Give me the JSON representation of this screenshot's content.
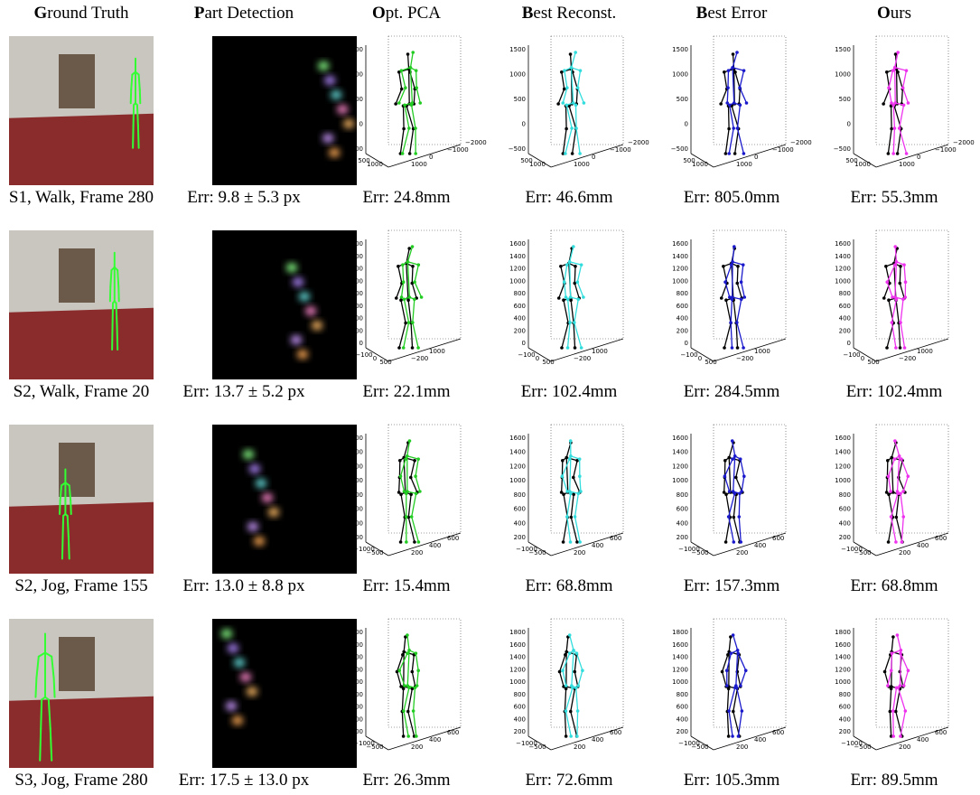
{
  "columns": [
    "Ground Truth",
    "Part Detection",
    "Opt. PCA",
    "Best Reconst.",
    "Best Error",
    "Ours"
  ],
  "rows": [
    {
      "caption": "S1, Walk, Frame 280",
      "errors": [
        "Err: 9.8 ± 5.3 px",
        "Err: 24.8mm",
        "Err: 46.6mm",
        "Err: 805.0mm",
        "Err: 55.3mm"
      ],
      "z_ticks": [
        "1500",
        "1000",
        "500",
        "0",
        "−500"
      ],
      "y_ticks": [
        "500",
        "1000"
      ],
      "x_ticks": [
        "1000",
        "0",
        "−1000",
        "−2000"
      ]
    },
    {
      "caption": "S2, Walk, Frame 20",
      "errors": [
        "Err: 13.7 ± 5.2 px",
        "Err: 22.1mm",
        "Err: 102.4mm",
        "Err: 284.5mm",
        "Err: 102.4mm"
      ],
      "z_ticks": [
        "1600",
        "1400",
        "1200",
        "1000",
        "800",
        "600",
        "400",
        "200",
        "0"
      ],
      "y_ticks": [
        "−100",
        "0",
        "500"
      ],
      "x_ticks": [
        "−200",
        "1000"
      ]
    },
    {
      "caption": "S2, Jog, Frame 155",
      "errors": [
        "Err: 13.0 ± 8.8 px",
        "Err: 15.4mm",
        "Err: 68.8mm",
        "Err: 157.3mm",
        "Err: 68.8mm"
      ],
      "z_ticks": [
        "1600",
        "1400",
        "1200",
        "1000",
        "800",
        "600",
        "400",
        "200"
      ],
      "y_ticks": [
        "−1000",
        "−500"
      ],
      "x_ticks": [
        "200",
        "400",
        "600"
      ]
    },
    {
      "caption": "S3, Jog, Frame 280",
      "errors": [
        "Err: 17.5 ± 13.0 px",
        "Err: 26.3mm",
        "Err: 72.6mm",
        "Err: 105.3mm",
        "Err: 89.5mm"
      ],
      "z_ticks": [
        "1800",
        "1600",
        "1400",
        "1200",
        "1000",
        "800",
        "600",
        "400",
        "200"
      ],
      "y_ticks": [
        "−1000",
        "−500"
      ],
      "x_ticks": [
        "200",
        "400",
        "600"
      ]
    }
  ]
}
